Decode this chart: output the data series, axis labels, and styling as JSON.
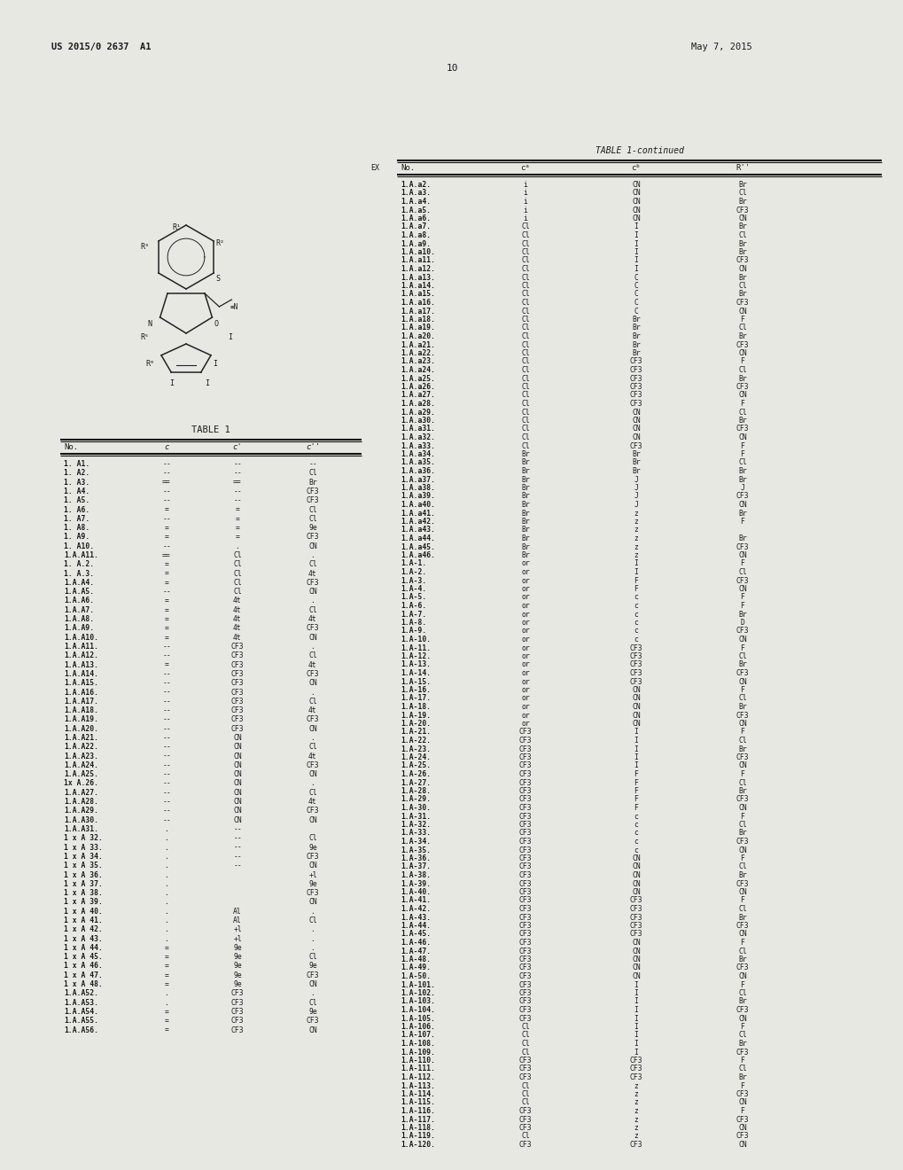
{
  "header_left": "US 2015/0 2637  A1",
  "header_right": "May 7, 2015",
  "page_number": "10",
  "table1_title": "TABLE 1",
  "table1_continued_title": "TABLE 1-continued",
  "bg_color": "#e8e8e3",
  "text_color": "#1a1a1a",
  "line_color": "#111111",
  "table1_rows": [
    [
      "1. A1.",
      "--",
      "--",
      "--"
    ],
    [
      "1. A2.",
      "--",
      "--",
      "Cl"
    ],
    [
      "1. A3.",
      "==",
      "==",
      "Br"
    ],
    [
      "1. A4.",
      "--",
      "--",
      "CF3"
    ],
    [
      "1. A5.",
      "--",
      "--",
      "CF3"
    ],
    [
      "1. A6.",
      "=",
      "=",
      "Cl"
    ],
    [
      "1. A7.",
      "--",
      "=",
      "Cl"
    ],
    [
      "1. A8.",
      "=",
      "=",
      "9e"
    ],
    [
      "1. A9.",
      "=",
      "=",
      "CF3"
    ],
    [
      "1. A10.",
      "--",
      ".",
      "CN"
    ],
    [
      "1.A.A11.",
      "==",
      "Cl",
      "."
    ],
    [
      "1. A.2.",
      "=",
      "Cl",
      "Cl"
    ],
    [
      "1. A.3.",
      "=",
      "Cl",
      "4t"
    ],
    [
      "1.A.A4.",
      "=",
      "Cl",
      "CF3"
    ],
    [
      "1.A.A5.",
      "--",
      "Cl",
      "CN"
    ],
    [
      "1.A.A6.",
      "=",
      "4t",
      "."
    ],
    [
      "1.A.A7.",
      "=",
      "4t",
      "Cl"
    ],
    [
      "1.A.A8.",
      "=",
      "4t",
      "4t"
    ],
    [
      "1.A.A9.",
      "=",
      "4t",
      "CF3"
    ],
    [
      "1.A.A10.",
      "=",
      "4t",
      "CN"
    ],
    [
      "1.A.A11.",
      "--",
      "CF3",
      "."
    ],
    [
      "1.A.A12.",
      "--",
      "CF3",
      "Cl"
    ],
    [
      "1.A.A13.",
      "=",
      "CF3",
      "4t"
    ],
    [
      "1.A.A14.",
      "--",
      "CF3",
      "CF3"
    ],
    [
      "1.A.A15.",
      "--",
      "CF3",
      "CN"
    ],
    [
      "1.A.A16.",
      "--",
      "CF3",
      "."
    ],
    [
      "1.A.A17.",
      "--",
      "CF3",
      "Cl"
    ],
    [
      "1.A.A18.",
      "--",
      "CF3",
      "4t"
    ],
    [
      "1.A.A19.",
      "--",
      "CF3",
      "CF3"
    ],
    [
      "1.A.A20.",
      "--",
      "CF3",
      "CN"
    ],
    [
      "1.A.A21.",
      "--",
      "CN",
      "."
    ],
    [
      "1.A.A22.",
      "--",
      "CN",
      "Cl"
    ],
    [
      "1.A.A23.",
      "--",
      "CN",
      "4t"
    ],
    [
      "1.A.A24.",
      "--",
      "CN",
      "CF3"
    ],
    [
      "1.A.A25.",
      "--",
      "CN",
      "CN"
    ],
    [
      "1x A.26.",
      "--",
      "CN",
      "."
    ],
    [
      "1.A.A27.",
      "--",
      "CN",
      "Cl"
    ],
    [
      "1.A.A28.",
      "--",
      "CN",
      "4t"
    ],
    [
      "1.A.A29.",
      "--",
      "CN",
      "CF3"
    ],
    [
      "1.A.A30.",
      "--",
      "CN",
      "CN"
    ],
    [
      "1.A.A31.",
      ".",
      "--",
      ""
    ],
    [
      "1 x A 32.",
      ".",
      "--",
      "Cl"
    ],
    [
      "1 x A 33.",
      ".",
      "--",
      "9e"
    ],
    [
      "1 x A 34.",
      ".",
      "--",
      "CF3"
    ],
    [
      "1 x A 35.",
      ".",
      "--",
      "CN"
    ],
    [
      "1 x A 36.",
      ".",
      "",
      "+l"
    ],
    [
      "1 x A 37.",
      ".",
      "",
      "9e"
    ],
    [
      "1 x A 38.",
      ".",
      "",
      "CF3"
    ],
    [
      "1 x A 39.",
      ".",
      "",
      "CN"
    ],
    [
      "1 x A 40.",
      ".",
      "Al",
      "."
    ],
    [
      "1 x A 41.",
      ".",
      "Al",
      "Cl"
    ],
    [
      "1 x A 42.",
      ".",
      "+l",
      "."
    ],
    [
      "1 x A 43.",
      ".",
      "+l",
      "."
    ],
    [
      "1 x A 44.",
      "=",
      "9e",
      "."
    ],
    [
      "1 x A 45.",
      "=",
      "9e",
      "Cl"
    ],
    [
      "1 x A 46.",
      "=",
      "9e",
      "9e"
    ],
    [
      "1 x A 47.",
      "=",
      "9e",
      "CF3"
    ],
    [
      "1 x A 48.",
      "=",
      "9e",
      "CN"
    ],
    [
      "1.A.A52.",
      ".",
      "CF3",
      "."
    ],
    [
      "1.A.A53.",
      ".",
      "CF3",
      "Cl"
    ],
    [
      "1.A.A54.",
      "=",
      "CF3",
      "9e"
    ],
    [
      "1.A.A55.",
      "=",
      "CF3",
      "CF3"
    ],
    [
      "1.A.A56.",
      "=",
      "CF3",
      "CN"
    ]
  ],
  "table1_cont_rows": [
    [
      "1.A.a2.",
      "i",
      "CN",
      "Br"
    ],
    [
      "1.A.a3.",
      "i",
      "CN",
      "Cl"
    ],
    [
      "1.A.a4.",
      "i",
      "CN",
      "Br"
    ],
    [
      "1.A.a5.",
      "i",
      "CN",
      "CF3"
    ],
    [
      "1.A.a6.",
      "i",
      "CN",
      "CN"
    ],
    [
      "1.A.a7.",
      "Cl",
      "I",
      "Br"
    ],
    [
      "1.A.a8.",
      "Cl",
      "I",
      "Cl"
    ],
    [
      "1.A.a9.",
      "Cl",
      "I",
      "Br"
    ],
    [
      "1.A.a10.",
      "Cl",
      "I",
      "Br"
    ],
    [
      "1.A.a11.",
      "Cl",
      "I",
      "CF3"
    ],
    [
      "1.A.a12.",
      "Cl",
      "I",
      "CN"
    ],
    [
      "1.A.a13.",
      "Cl",
      "C",
      "Br"
    ],
    [
      "1.A.a14.",
      "Cl",
      "C",
      "Cl"
    ],
    [
      "1.A.a15.",
      "Cl",
      "C",
      "Br"
    ],
    [
      "1.A.a16.",
      "Cl",
      "C",
      "CF3"
    ],
    [
      "1.A.a17.",
      "Cl",
      "C",
      "CN"
    ],
    [
      "1.A.a18.",
      "Cl",
      "Br",
      "F"
    ],
    [
      "1.A.a19.",
      "Cl",
      "Br",
      "Cl"
    ],
    [
      "1.A.a20.",
      "Cl",
      "Br",
      "Br"
    ],
    [
      "1.A.a21.",
      "Cl",
      "Br",
      "CF3"
    ],
    [
      "1.A.a22.",
      "Cl",
      "Br",
      "CN"
    ],
    [
      "1.A.a23.",
      "Cl",
      "CF3",
      "F"
    ],
    [
      "1.A.a24.",
      "Cl",
      "CF3",
      "Cl"
    ],
    [
      "1.A.a25.",
      "Cl",
      "CF3",
      "Br"
    ],
    [
      "1.A.a26.",
      "Cl",
      "CF3",
      "CF3"
    ],
    [
      "1.A.a27.",
      "Cl",
      "CF3",
      "CN"
    ],
    [
      "1.A.a28.",
      "Cl",
      "CF3",
      "F"
    ],
    [
      "1.A.a29.",
      "Cl",
      "CN",
      "Cl"
    ],
    [
      "1.A.a30.",
      "Cl",
      "CN",
      "Br"
    ],
    [
      "1.A.a31.",
      "Cl",
      "CN",
      "CF3"
    ],
    [
      "1.A.a32.",
      "Cl",
      "CN",
      "CN"
    ],
    [
      "1.A.a33.",
      "Cl",
      "CF3",
      "F"
    ],
    [
      "1.A.a34.",
      "Br",
      "Br",
      "F"
    ],
    [
      "1.A.a35.",
      "Br",
      "Br",
      "Cl"
    ],
    [
      "1.A.a36.",
      "Br",
      "Br",
      "Br"
    ],
    [
      "1.A.a37.",
      "Br",
      "J",
      "Br"
    ],
    [
      "1.A.a38.",
      "Br",
      "J",
      "J"
    ],
    [
      "1.A.a39.",
      "Br",
      "J",
      "CF3"
    ],
    [
      "1.A.a40.",
      "Br",
      "J",
      "CN"
    ],
    [
      "1.A.a41.",
      "Br",
      "z",
      "Br"
    ],
    [
      "1.A.a42.",
      "Br",
      "z",
      "F"
    ],
    [
      "1.A.a43.",
      "Br",
      "z",
      ""
    ],
    [
      "1.A.a44.",
      "Br",
      "z",
      "Br"
    ],
    [
      "1.A.a45.",
      "Br",
      "z",
      "CF3"
    ],
    [
      "1.A.a46.",
      "Br",
      "z",
      "CN"
    ],
    [
      "1.A-1.",
      "or",
      "I",
      "F"
    ],
    [
      "1.A-2.",
      "or",
      "I",
      "Cl"
    ],
    [
      "1.A-3.",
      "or",
      "F",
      "CF3"
    ],
    [
      "1.A-4.",
      "or",
      "F",
      "CN"
    ],
    [
      "1.A-5.",
      "or",
      "c",
      "F"
    ],
    [
      "1.A-6.",
      "or",
      "c",
      "F"
    ],
    [
      "1.A-7.",
      "or",
      "c",
      "Br"
    ],
    [
      "1.A-8.",
      "or",
      "c",
      "D"
    ],
    [
      "1.A-9.",
      "or",
      "c",
      "CF3"
    ],
    [
      "1.A-10.",
      "or",
      "c",
      "CN"
    ],
    [
      "1.A-11.",
      "or",
      "CF3",
      "F"
    ],
    [
      "1.A-12.",
      "or",
      "CF3",
      "Cl"
    ],
    [
      "1.A-13.",
      "or",
      "CF3",
      "Br"
    ],
    [
      "1.A-14.",
      "or",
      "CF3",
      "CF3"
    ],
    [
      "1.A-15.",
      "or",
      "CF3",
      "CN"
    ],
    [
      "1.A-16.",
      "or",
      "CN",
      "F"
    ],
    [
      "1.A-17.",
      "or",
      "CN",
      "Cl"
    ],
    [
      "1.A-18.",
      "or",
      "CN",
      "Br"
    ],
    [
      "1.A-19.",
      "or",
      "CN",
      "CF3"
    ],
    [
      "1.A-20.",
      "or",
      "CN",
      "CN"
    ],
    [
      "1.A-21.",
      "CF3",
      "I",
      "F"
    ],
    [
      "1.A-22.",
      "CF3",
      "I",
      "Cl"
    ],
    [
      "1.A-23.",
      "CF3",
      "I",
      "Br"
    ],
    [
      "1.A-24.",
      "CF3",
      "I",
      "CF3"
    ],
    [
      "1.A-25.",
      "CF3",
      "I",
      "CN"
    ],
    [
      "1.A-26.",
      "CF3",
      "F",
      "F"
    ],
    [
      "1.A-27.",
      "CF3",
      "F",
      "Cl"
    ],
    [
      "1.A-28.",
      "CF3",
      "F",
      "Br"
    ],
    [
      "1.A-29.",
      "CF3",
      "F",
      "CF3"
    ],
    [
      "1.A-30.",
      "CF3",
      "F",
      "CN"
    ],
    [
      "1.A-31.",
      "CF3",
      "c",
      "F"
    ],
    [
      "1.A-32.",
      "CF3",
      "c",
      "Cl"
    ],
    [
      "1.A-33.",
      "CF3",
      "c",
      "Br"
    ],
    [
      "1.A-34.",
      "CF3",
      "c",
      "CF3"
    ],
    [
      "1.A-35.",
      "CF3",
      "c",
      "CN"
    ],
    [
      "1.A-36.",
      "CF3",
      "CN",
      "F"
    ],
    [
      "1.A-37.",
      "CF3",
      "CN",
      "Cl"
    ],
    [
      "1.A-38.",
      "CF3",
      "CN",
      "Br"
    ],
    [
      "1.A-39.",
      "CF3",
      "CN",
      "CF3"
    ],
    [
      "1.A-40.",
      "CF3",
      "CN",
      "CN"
    ],
    [
      "1.A-41.",
      "CF3",
      "CF3",
      "F"
    ],
    [
      "1.A-42.",
      "CF3",
      "CF3",
      "Cl"
    ],
    [
      "1.A-43.",
      "CF3",
      "CF3",
      "Br"
    ],
    [
      "1.A-44.",
      "CF3",
      "CF3",
      "CF3"
    ],
    [
      "1.A-45.",
      "CF3",
      "CF3",
      "CN"
    ],
    [
      "1.A-46.",
      "CF3",
      "CN",
      "F"
    ],
    [
      "1.A-47.",
      "CF3",
      "CN",
      "Cl"
    ],
    [
      "1.A-48.",
      "CF3",
      "CN",
      "Br"
    ],
    [
      "1.A-49.",
      "CF3",
      "CN",
      "CF3"
    ],
    [
      "1.A-50.",
      "CF3",
      "CN",
      "CN"
    ],
    [
      "1.A-101.",
      "CF3",
      "I",
      "F"
    ],
    [
      "1.A-102.",
      "CF3",
      "I",
      "Cl"
    ],
    [
      "1.A-103.",
      "CF3",
      "I",
      "Br"
    ],
    [
      "1.A-104.",
      "CF3",
      "I",
      "CF3"
    ],
    [
      "1.A-105.",
      "CF3",
      "I",
      "CN"
    ],
    [
      "1.A-106.",
      "Cl",
      "I",
      "F"
    ],
    [
      "1.A-107.",
      "Cl",
      "I",
      "Cl"
    ],
    [
      "1.A-108.",
      "Cl",
      "I",
      "Br"
    ],
    [
      "1.A-109.",
      "Cl",
      "I",
      "CF3"
    ],
    [
      "1.A-110.",
      "CF3",
      "CF3",
      "F"
    ],
    [
      "1.A-111.",
      "CF3",
      "CF3",
      "Cl"
    ],
    [
      "1.A-112.",
      "CF3",
      "CF3",
      "Br"
    ],
    [
      "1.A-113.",
      "Cl",
      "z",
      "F"
    ],
    [
      "1.A-114.",
      "Cl",
      "z",
      "CF3"
    ],
    [
      "1.A-115.",
      "Cl",
      "z",
      "CN"
    ],
    [
      "1.A-116.",
      "CF3",
      "z",
      "F"
    ],
    [
      "1.A-117.",
      "CF3",
      "z",
      "CF3"
    ],
    [
      "1.A-118.",
      "CF3",
      "z",
      "CN"
    ],
    [
      "1.A-119.",
      "Cl",
      "z",
      "CF3"
    ],
    [
      "1.A-120.",
      "CF3",
      "CF3",
      "CN"
    ]
  ]
}
